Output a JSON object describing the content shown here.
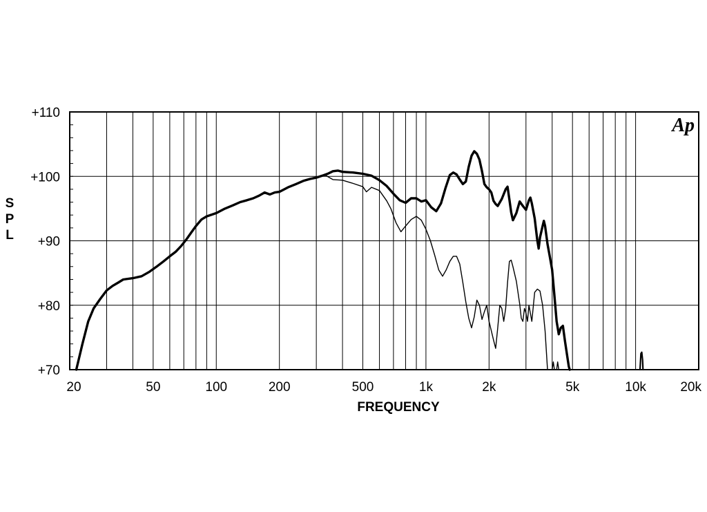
{
  "chart_data": {
    "type": "line",
    "title": "",
    "xlabel": "FREQUENCY",
    "ylabel": "SPL",
    "xscale": "log",
    "xlim": [
      20,
      20000
    ],
    "ylim": [
      70,
      110
    ],
    "grid": true,
    "logo_text": "Ap",
    "x_tick_labels": [
      {
        "value": 20,
        "label": "20"
      },
      {
        "value": 50,
        "label": "50"
      },
      {
        "value": 100,
        "label": "100"
      },
      {
        "value": 200,
        "label": "200"
      },
      {
        "value": 500,
        "label": "500"
      },
      {
        "value": 1000,
        "label": "1k"
      },
      {
        "value": 2000,
        "label": "2k"
      },
      {
        "value": 5000,
        "label": "5k"
      },
      {
        "value": 10000,
        "label": "10k"
      },
      {
        "value": 20000,
        "label": "20k"
      }
    ],
    "y_tick_labels": [
      {
        "value": 70,
        "label": "+70"
      },
      {
        "value": 80,
        "label": "+80"
      },
      {
        "value": 90,
        "label": "+90"
      },
      {
        "value": 100,
        "label": "+100"
      },
      {
        "value": 110,
        "label": "+110"
      }
    ],
    "series": [
      {
        "line": "thick",
        "color": "#000000",
        "points": [
          [
            21.5,
            70
          ],
          [
            23,
            74
          ],
          [
            24.5,
            77.5
          ],
          [
            26,
            79.5
          ],
          [
            28,
            81
          ],
          [
            30,
            82.3
          ],
          [
            32,
            83
          ],
          [
            34,
            83.5
          ],
          [
            36,
            84
          ],
          [
            40,
            84.2
          ],
          [
            44,
            84.5
          ],
          [
            48,
            85.2
          ],
          [
            52,
            86
          ],
          [
            56,
            86.8
          ],
          [
            60,
            87.6
          ],
          [
            64,
            88.3
          ],
          [
            68,
            89.2
          ],
          [
            72,
            90.2
          ],
          [
            76,
            91.3
          ],
          [
            80,
            92.3
          ],
          [
            85,
            93.3
          ],
          [
            90,
            93.8
          ],
          [
            100,
            94.3
          ],
          [
            110,
            95
          ],
          [
            120,
            95.5
          ],
          [
            130,
            96
          ],
          [
            140,
            96.3
          ],
          [
            150,
            96.6
          ],
          [
            160,
            97
          ],
          [
            170,
            97.5
          ],
          [
            180,
            97.2
          ],
          [
            190,
            97.5
          ],
          [
            200,
            97.6
          ],
          [
            220,
            98.3
          ],
          [
            240,
            98.8
          ],
          [
            260,
            99.3
          ],
          [
            280,
            99.6
          ],
          [
            300,
            99.8
          ],
          [
            320,
            100.1
          ],
          [
            340,
            100.4
          ],
          [
            360,
            100.8
          ],
          [
            380,
            100.9
          ],
          [
            400,
            100.7
          ],
          [
            450,
            100.6
          ],
          [
            500,
            100.4
          ],
          [
            550,
            100.1
          ],
          [
            600,
            99.4
          ],
          [
            650,
            98.5
          ],
          [
            700,
            97.3
          ],
          [
            750,
            96.3
          ],
          [
            800,
            95.9
          ],
          [
            850,
            96.6
          ],
          [
            900,
            96.6
          ],
          [
            950,
            96.1
          ],
          [
            1000,
            96.3
          ],
          [
            1060,
            95.2
          ],
          [
            1120,
            94.6
          ],
          [
            1180,
            95.8
          ],
          [
            1240,
            98.2
          ],
          [
            1300,
            100.2
          ],
          [
            1350,
            100.6
          ],
          [
            1400,
            100.3
          ],
          [
            1450,
            99.5
          ],
          [
            1500,
            98.8
          ],
          [
            1550,
            99.2
          ],
          [
            1600,
            101.5
          ],
          [
            1650,
            103.2
          ],
          [
            1700,
            103.9
          ],
          [
            1750,
            103.5
          ],
          [
            1800,
            102.6
          ],
          [
            1850,
            100.8
          ],
          [
            1900,
            98.8
          ],
          [
            1950,
            98.3
          ],
          [
            2000,
            98
          ],
          [
            2050,
            97.5
          ],
          [
            2100,
            96.2
          ],
          [
            2150,
            95.7
          ],
          [
            2200,
            95.4
          ],
          [
            2300,
            96.5
          ],
          [
            2400,
            98
          ],
          [
            2450,
            98.4
          ],
          [
            2500,
            96.4
          ],
          [
            2550,
            94.4
          ],
          [
            2600,
            93.2
          ],
          [
            2700,
            94.3
          ],
          [
            2800,
            96.1
          ],
          [
            2900,
            95.4
          ],
          [
            3000,
            94.8
          ],
          [
            3100,
            96.3
          ],
          [
            3150,
            96.7
          ],
          [
            3200,
            95.8
          ],
          [
            3300,
            93.5
          ],
          [
            3400,
            90
          ],
          [
            3450,
            88.8
          ],
          [
            3500,
            90.5
          ],
          [
            3600,
            92.3
          ],
          [
            3650,
            93.1
          ],
          [
            3700,
            92.3
          ],
          [
            3800,
            89.5
          ],
          [
            3900,
            87.5
          ],
          [
            4000,
            85.5
          ],
          [
            4100,
            81.5
          ],
          [
            4200,
            77.5
          ],
          [
            4300,
            75.5
          ],
          [
            4400,
            76.5
          ],
          [
            4500,
            76.8
          ],
          [
            4600,
            74.5
          ],
          [
            4700,
            72.5
          ],
          [
            4800,
            70.5
          ],
          [
            4850,
            70
          ]
        ]
      },
      {
        "line": "thin",
        "color": "#000000",
        "points": [
          [
            330,
            100.2
          ],
          [
            360,
            99.5
          ],
          [
            400,
            99.4
          ],
          [
            450,
            98.9
          ],
          [
            500,
            98.4
          ],
          [
            520,
            97.6
          ],
          [
            550,
            98.3
          ],
          [
            600,
            97.8
          ],
          [
            650,
            96.2
          ],
          [
            680,
            95
          ],
          [
            720,
            92.8
          ],
          [
            760,
            91.4
          ],
          [
            800,
            92.3
          ],
          [
            850,
            93.3
          ],
          [
            900,
            93.8
          ],
          [
            950,
            93.2
          ],
          [
            1000,
            91.8
          ],
          [
            1050,
            90
          ],
          [
            1100,
            87.8
          ],
          [
            1150,
            85.5
          ],
          [
            1200,
            84.5
          ],
          [
            1250,
            85.5
          ],
          [
            1300,
            86.8
          ],
          [
            1350,
            87.6
          ],
          [
            1400,
            87.6
          ],
          [
            1450,
            86.4
          ],
          [
            1500,
            83.5
          ],
          [
            1550,
            80.5
          ],
          [
            1600,
            78
          ],
          [
            1650,
            76.5
          ],
          [
            1700,
            78.2
          ],
          [
            1750,
            80.8
          ],
          [
            1800,
            80
          ],
          [
            1850,
            77.8
          ],
          [
            1900,
            79
          ],
          [
            1950,
            80
          ],
          [
            2000,
            77.5
          ],
          [
            2100,
            74.6
          ],
          [
            2150,
            73.3
          ],
          [
            2200,
            76.5
          ],
          [
            2250,
            80
          ],
          [
            2300,
            79.5
          ],
          [
            2350,
            77.5
          ],
          [
            2400,
            79.5
          ],
          [
            2450,
            83.5
          ],
          [
            2500,
            86.8
          ],
          [
            2550,
            87
          ],
          [
            2600,
            86
          ],
          [
            2700,
            83.7
          ],
          [
            2800,
            80.2
          ],
          [
            2850,
            78
          ],
          [
            2900,
            77.5
          ],
          [
            2950,
            79.5
          ],
          [
            3000,
            78.8
          ],
          [
            3050,
            77.5
          ],
          [
            3100,
            80
          ],
          [
            3200,
            77.5
          ],
          [
            3300,
            82
          ],
          [
            3400,
            82.5
          ],
          [
            3500,
            82.2
          ],
          [
            3600,
            80
          ],
          [
            3700,
            76
          ],
          [
            3800,
            70
          ]
        ]
      },
      {
        "line": "thin-tail",
        "color": "#000000",
        "points": [
          [
            4000,
            70
          ],
          [
            4050,
            71.2
          ],
          [
            4100,
            70
          ],
          [
            4200,
            70
          ],
          [
            4250,
            71.2
          ],
          [
            4300,
            70
          ]
        ]
      },
      {
        "line": "spike",
        "color": "#000000",
        "points": [
          [
            10500,
            70
          ],
          [
            10600,
            72.5
          ],
          [
            10700,
            72.7
          ],
          [
            10800,
            71.5
          ],
          [
            10850,
            70
          ]
        ]
      }
    ]
  }
}
